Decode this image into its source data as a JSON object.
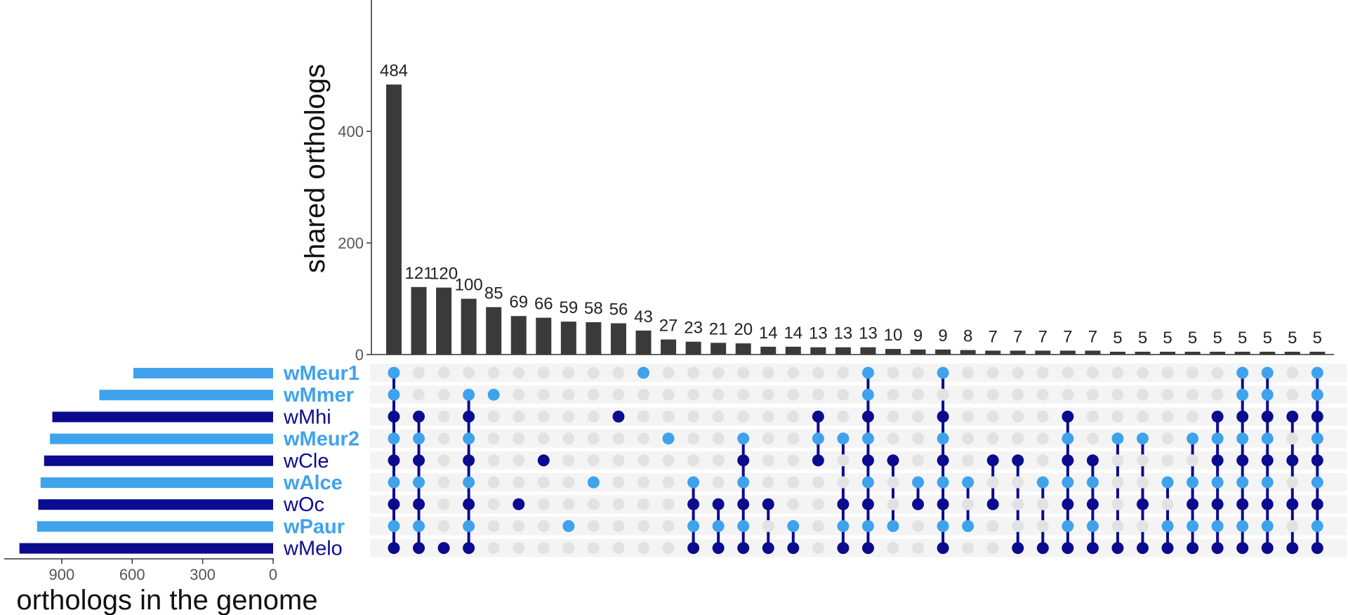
{
  "chart_data": {
    "type": "upset",
    "ylabel": "shared orthologs",
    "xlabel_sets": "orthologs in the genome",
    "y_ticks": [
      0,
      200,
      400
    ],
    "ylim": [
      0,
      560
    ],
    "set_size_ticks": [
      900,
      600,
      300,
      0
    ],
    "set_size_xlim": [
      0,
      1100
    ],
    "colors": {
      "dark": "#0b0b8f",
      "light": "#3fa2ec",
      "inactive": "#e2e2e2",
      "bar": "#3a3a3a",
      "row_band": "#f4f4f4"
    },
    "sets": [
      {
        "name": "wMeur1",
        "size": 595,
        "color": "light"
      },
      {
        "name": "wMmer",
        "size": 740,
        "color": "light"
      },
      {
        "name": "wMhi",
        "size": 940,
        "color": "dark"
      },
      {
        "name": "wMeur2",
        "size": 950,
        "color": "light"
      },
      {
        "name": "wCle",
        "size": 975,
        "color": "dark"
      },
      {
        "name": "wAlce",
        "size": 990,
        "color": "light"
      },
      {
        "name": "wOc",
        "size": 1000,
        "color": "dark"
      },
      {
        "name": "wPaur",
        "size": 1005,
        "color": "light"
      },
      {
        "name": "wMelo",
        "size": 1080,
        "color": "dark"
      }
    ],
    "intersections": [
      {
        "value": 484,
        "labels": "484",
        "sets": [
          0,
          1,
          2,
          3,
          4,
          5,
          6,
          7,
          8
        ]
      },
      {
        "value": 121,
        "labels": "121",
        "sets": [
          2,
          3,
          4,
          5,
          6,
          7,
          8
        ]
      },
      {
        "value": 120,
        "labels": "120",
        "sets": [
          8
        ]
      },
      {
        "value": 100,
        "labels": "100",
        "sets": [
          1,
          2,
          3,
          4,
          5,
          6,
          7,
          8
        ]
      },
      {
        "value": 85,
        "labels": "85",
        "sets": [
          1
        ]
      },
      {
        "value": 69,
        "labels": "69",
        "sets": [
          6
        ]
      },
      {
        "value": 66,
        "labels": "66",
        "sets": [
          4
        ]
      },
      {
        "value": 59,
        "labels": "59",
        "sets": [
          7
        ]
      },
      {
        "value": 58,
        "labels": "58",
        "sets": [
          5
        ]
      },
      {
        "value": 56,
        "labels": "56",
        "sets": [
          2
        ]
      },
      {
        "value": 43,
        "labels": "43",
        "sets": [
          0
        ]
      },
      {
        "value": 27,
        "labels": "27",
        "sets": [
          3
        ]
      },
      {
        "value": 23,
        "labels": "23",
        "sets": [
          5,
          6,
          7,
          8
        ]
      },
      {
        "value": 21,
        "labels": "21",
        "sets": [
          6,
          7,
          8
        ]
      },
      {
        "value": 20,
        "labels": "20",
        "sets": [
          3,
          4,
          5,
          6,
          7,
          8
        ]
      },
      {
        "value": 14,
        "labels": "14",
        "sets": [
          6,
          8
        ]
      },
      {
        "value": 14,
        "labels": "14",
        "sets": [
          7,
          8
        ]
      },
      {
        "value": 13,
        "labels": "13",
        "sets": [
          2,
          3,
          4
        ]
      },
      {
        "value": 13,
        "labels": "13",
        "sets": [
          3,
          6,
          7,
          8
        ]
      },
      {
        "value": 13,
        "labels": "13",
        "sets": [
          0,
          1,
          2,
          3,
          4,
          5,
          6,
          7,
          8
        ]
      },
      {
        "value": 10,
        "labels": "10",
        "sets": [
          4,
          7
        ]
      },
      {
        "value": 9,
        "labels": "9",
        "sets": [
          5,
          6
        ]
      },
      {
        "value": 9,
        "labels": "9",
        "sets": [
          0,
          2,
          3,
          4,
          5,
          6,
          7,
          8
        ]
      },
      {
        "value": 8,
        "labels": "8",
        "sets": [
          5,
          7
        ]
      },
      {
        "value": 7,
        "labels": "7",
        "sets": [
          4,
          6
        ]
      },
      {
        "value": 7,
        "labels": "7",
        "sets": [
          4,
          8
        ]
      },
      {
        "value": 7,
        "labels": "7",
        "sets": [
          5,
          8
        ]
      },
      {
        "value": 7,
        "labels": "7",
        "sets": [
          2,
          3,
          4,
          5,
          6,
          7,
          8
        ]
      },
      {
        "value": 7,
        "labels": "7",
        "sets": [
          4,
          5,
          6,
          7,
          8
        ]
      },
      {
        "value": 5,
        "labels": "5",
        "sets": [
          3,
          8
        ]
      },
      {
        "value": 5,
        "labels": "5",
        "sets": [
          3,
          6,
          8
        ]
      },
      {
        "value": 5,
        "labels": "5",
        "sets": [
          5,
          7,
          8
        ]
      },
      {
        "value": 5,
        "labels": "5",
        "sets": [
          3,
          5,
          6,
          7,
          8
        ]
      },
      {
        "value": 5,
        "labels": "5",
        "sets": [
          2,
          3,
          4,
          5,
          6,
          7,
          8
        ]
      },
      {
        "value": 5,
        "labels": "5",
        "sets": [
          0,
          1,
          2,
          3,
          4,
          5,
          6,
          7,
          8
        ]
      },
      {
        "value": 5,
        "labels": "5",
        "sets": [
          0,
          1,
          2,
          3,
          4,
          5,
          6,
          7,
          8
        ]
      },
      {
        "value": 5,
        "labels": "5",
        "sets": [
          2,
          4,
          6,
          8
        ]
      },
      {
        "value": 5,
        "labels": "5",
        "sets": [
          0,
          1,
          2,
          3,
          4,
          5,
          6,
          7,
          8
        ]
      }
    ]
  }
}
